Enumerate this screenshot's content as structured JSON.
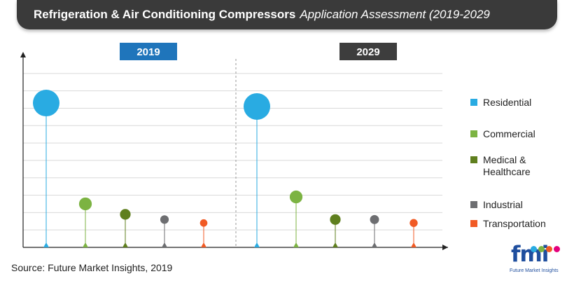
{
  "title": {
    "main": "Refrigeration & Air Conditioning Compressors",
    "sub": "Application Assessment (2019-2029"
  },
  "colors": {
    "residential": "#29ABE2",
    "commercial": "#7CB342",
    "medical": "#5F7F1E",
    "industrial": "#6D6E71",
    "transportation": "#F15A24",
    "year_2019": "#1F75BB",
    "year_2029": "#3D3D3D"
  },
  "legend": [
    {
      "label": "Residential",
      "color": "#29ABE2"
    },
    {
      "label": "Commercial",
      "color": "#7CB342"
    },
    {
      "label": "Medical & Healthcare",
      "color": "#5F7F1E"
    },
    {
      "label": "Industrial",
      "color": "#6D6E71"
    },
    {
      "label": "Transportation",
      "color": "#F15A24"
    }
  ],
  "chart_data": {
    "type": "scatter",
    "title": "Refrigeration & Air Conditioning Compressors Application Assessment (2019-2029",
    "panels": [
      "2019",
      "2029"
    ],
    "categories": [
      "Residential",
      "Commercial",
      "Medical & Healthcare",
      "Industrial",
      "Transportation"
    ],
    "series": [
      {
        "name": "2019",
        "values": [
          8.3,
          2.5,
          1.9,
          1.6,
          1.4
        ],
        "bubble_size": [
          1.0,
          0.48,
          0.4,
          0.32,
          0.28
        ]
      },
      {
        "name": "2029",
        "values": [
          8.1,
          2.9,
          1.6,
          1.6,
          1.4
        ],
        "bubble_size": [
          1.0,
          0.48,
          0.4,
          0.34,
          0.3
        ]
      }
    ],
    "ylim": [
      0,
      11
    ],
    "grid": true,
    "legend_position": "right"
  },
  "source": "Source: Future Market Insights, 2019",
  "logo": {
    "text": "fmi",
    "tagline": "Future Market Insights"
  }
}
